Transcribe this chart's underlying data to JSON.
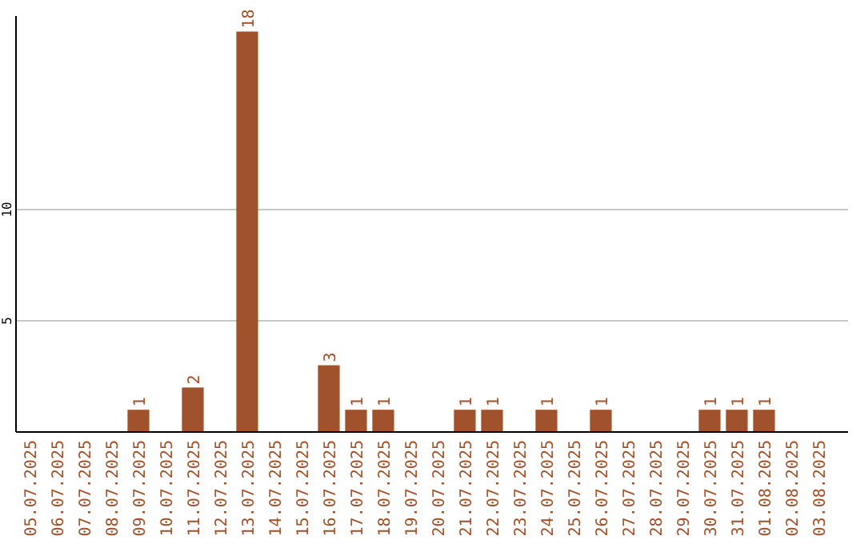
{
  "chart_data": {
    "type": "bar",
    "categories": [
      "05.07.2025",
      "06.07.2025",
      "07.07.2025",
      "08.07.2025",
      "09.07.2025",
      "10.07.2025",
      "11.07.2025",
      "12.07.2025",
      "13.07.2025",
      "14.07.2025",
      "15.07.2025",
      "16.07.2025",
      "17.07.2025",
      "18.07.2025",
      "19.07.2025",
      "20.07.2025",
      "21.07.2025",
      "22.07.2025",
      "23.07.2025",
      "24.07.2025",
      "25.07.2025",
      "26.07.2025",
      "27.07.2025",
      "28.07.2025",
      "29.07.2025",
      "30.07.2025",
      "31.07.2025",
      "01.08.2025",
      "02.08.2025",
      "03.08.2025"
    ],
    "values": [
      null,
      null,
      null,
      null,
      1,
      null,
      2,
      null,
      18,
      null,
      null,
      3,
      1,
      1,
      null,
      null,
      1,
      1,
      null,
      1,
      null,
      1,
      null,
      null,
      null,
      1,
      1,
      1,
      null,
      null
    ],
    "color": "#a0522d",
    "ylim": [
      0,
      18.7
    ],
    "yticks": [
      5,
      10
    ],
    "grid": "y",
    "data_labels": true
  }
}
